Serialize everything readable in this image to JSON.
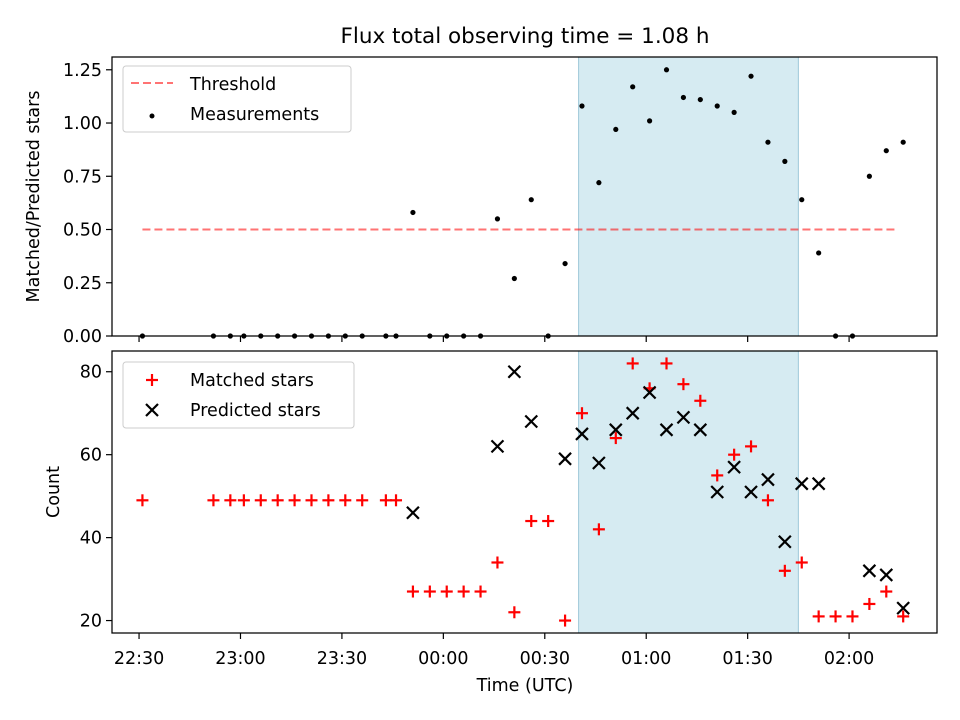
{
  "title": "Flux total observing time = 1.08 h",
  "xlabel": "Time (UTC)",
  "x_tick_labels": [
    "22:30",
    "23:00",
    "23:30",
    "00:00",
    "00:30",
    "01:00",
    "01:30",
    "02:00"
  ],
  "colors": {
    "threshold": "#ff0000",
    "measurements": "#000000",
    "matched": "#ff0000",
    "predicted": "#000000",
    "shade": "#add8e6"
  },
  "chart_data": [
    {
      "type": "scatter",
      "panel": "top",
      "ylabel": "Matched/Predicted stars",
      "xlim": [
        "22:22",
        "02:26"
      ],
      "ylim": [
        0,
        1.31
      ],
      "y_ticks": [
        "0.00",
        "0.25",
        "0.50",
        "0.75",
        "1.00",
        "1.25"
      ],
      "legend": {
        "location": "upper left",
        "entries": [
          "Threshold",
          "Measurements"
        ]
      },
      "shaded_region": {
        "x_start": "00:40",
        "x_end": "01:45"
      },
      "series": [
        {
          "name": "Threshold",
          "style": "dashed line",
          "points": [
            {
              "x": "22:31",
              "y": 0.5
            },
            {
              "x": "02:14",
              "y": 0.5
            }
          ]
        },
        {
          "name": "Measurements",
          "style": "dots",
          "points": [
            {
              "x": "22:31",
              "y": 0.0
            },
            {
              "x": "22:52",
              "y": 0.0
            },
            {
              "x": "22:57",
              "y": 0.0
            },
            {
              "x": "23:01",
              "y": 0.0
            },
            {
              "x": "23:06",
              "y": 0.0
            },
            {
              "x": "23:11",
              "y": 0.0
            },
            {
              "x": "23:16",
              "y": 0.0
            },
            {
              "x": "23:21",
              "y": 0.0
            },
            {
              "x": "23:26",
              "y": 0.0
            },
            {
              "x": "23:31",
              "y": 0.0
            },
            {
              "x": "23:36",
              "y": 0.0
            },
            {
              "x": "23:43",
              "y": 0.0
            },
            {
              "x": "23:46",
              "y": 0.0
            },
            {
              "x": "23:51",
              "y": 0.58
            },
            {
              "x": "23:56",
              "y": 0.0
            },
            {
              "x": "00:01",
              "y": 0.0
            },
            {
              "x": "00:06",
              "y": 0.0
            },
            {
              "x": "00:11",
              "y": 0.0
            },
            {
              "x": "00:16",
              "y": 0.55
            },
            {
              "x": "00:21",
              "y": 0.27
            },
            {
              "x": "00:26",
              "y": 0.64
            },
            {
              "x": "00:31",
              "y": 0.0
            },
            {
              "x": "00:36",
              "y": 0.34
            },
            {
              "x": "00:41",
              "y": 1.08
            },
            {
              "x": "00:46",
              "y": 0.72
            },
            {
              "x": "00:51",
              "y": 0.97
            },
            {
              "x": "00:56",
              "y": 1.17
            },
            {
              "x": "01:01",
              "y": 1.01
            },
            {
              "x": "01:06",
              "y": 1.25
            },
            {
              "x": "01:11",
              "y": 1.12
            },
            {
              "x": "01:16",
              "y": 1.11
            },
            {
              "x": "01:21",
              "y": 1.08
            },
            {
              "x": "01:26",
              "y": 1.05
            },
            {
              "x": "01:31",
              "y": 1.22
            },
            {
              "x": "01:36",
              "y": 0.91
            },
            {
              "x": "01:41",
              "y": 0.82
            },
            {
              "x": "01:46",
              "y": 0.64
            },
            {
              "x": "01:51",
              "y": 0.39
            },
            {
              "x": "01:56",
              "y": 0.0
            },
            {
              "x": "02:01",
              "y": 0.0
            },
            {
              "x": "02:06",
              "y": 0.75
            },
            {
              "x": "02:11",
              "y": 0.87
            },
            {
              "x": "02:16",
              "y": 0.91
            }
          ]
        }
      ]
    },
    {
      "type": "scatter",
      "panel": "bottom",
      "ylabel": "Count",
      "xlim": [
        "22:22",
        "02:26"
      ],
      "ylim": [
        17,
        85
      ],
      "y_ticks": [
        "20",
        "40",
        "60",
        "80"
      ],
      "legend": {
        "location": "upper left",
        "entries": [
          "Matched stars",
          "Predicted stars"
        ]
      },
      "shaded_region": {
        "x_start": "00:40",
        "x_end": "01:45"
      },
      "series": [
        {
          "name": "Matched stars",
          "marker": "+",
          "points": [
            {
              "x": "22:31",
              "y": 49
            },
            {
              "x": "22:52",
              "y": 49
            },
            {
              "x": "22:57",
              "y": 49
            },
            {
              "x": "23:01",
              "y": 49
            },
            {
              "x": "23:06",
              "y": 49
            },
            {
              "x": "23:11",
              "y": 49
            },
            {
              "x": "23:16",
              "y": 49
            },
            {
              "x": "23:21",
              "y": 49
            },
            {
              "x": "23:26",
              "y": 49
            },
            {
              "x": "23:31",
              "y": 49
            },
            {
              "x": "23:36",
              "y": 49
            },
            {
              "x": "23:43",
              "y": 49
            },
            {
              "x": "23:46",
              "y": 49
            },
            {
              "x": "23:51",
              "y": 27
            },
            {
              "x": "23:56",
              "y": 27
            },
            {
              "x": "00:01",
              "y": 27
            },
            {
              "x": "00:06",
              "y": 27
            },
            {
              "x": "00:11",
              "y": 27
            },
            {
              "x": "00:16",
              "y": 34
            },
            {
              "x": "00:21",
              "y": 22
            },
            {
              "x": "00:26",
              "y": 44
            },
            {
              "x": "00:31",
              "y": 44
            },
            {
              "x": "00:36",
              "y": 20
            },
            {
              "x": "00:41",
              "y": 70
            },
            {
              "x": "00:46",
              "y": 42
            },
            {
              "x": "00:51",
              "y": 64
            },
            {
              "x": "00:56",
              "y": 82
            },
            {
              "x": "01:01",
              "y": 76
            },
            {
              "x": "01:06",
              "y": 82
            },
            {
              "x": "01:11",
              "y": 77
            },
            {
              "x": "01:16",
              "y": 73
            },
            {
              "x": "01:21",
              "y": 55
            },
            {
              "x": "01:26",
              "y": 60
            },
            {
              "x": "01:31",
              "y": 62
            },
            {
              "x": "01:36",
              "y": 49
            },
            {
              "x": "01:41",
              "y": 32
            },
            {
              "x": "01:46",
              "y": 34
            },
            {
              "x": "01:51",
              "y": 21
            },
            {
              "x": "01:56",
              "y": 21
            },
            {
              "x": "02:01",
              "y": 21
            },
            {
              "x": "02:06",
              "y": 24
            },
            {
              "x": "02:11",
              "y": 27
            },
            {
              "x": "02:16",
              "y": 21
            }
          ]
        },
        {
          "name": "Predicted stars",
          "marker": "x",
          "points": [
            {
              "x": "23:51",
              "y": 46
            },
            {
              "x": "00:16",
              "y": 62
            },
            {
              "x": "00:21",
              "y": 80
            },
            {
              "x": "00:26",
              "y": 68
            },
            {
              "x": "00:36",
              "y": 59
            },
            {
              "x": "00:41",
              "y": 65
            },
            {
              "x": "00:46",
              "y": 58
            },
            {
              "x": "00:51",
              "y": 66
            },
            {
              "x": "00:56",
              "y": 70
            },
            {
              "x": "01:01",
              "y": 75
            },
            {
              "x": "01:06",
              "y": 66
            },
            {
              "x": "01:11",
              "y": 69
            },
            {
              "x": "01:16",
              "y": 66
            },
            {
              "x": "01:21",
              "y": 51
            },
            {
              "x": "01:26",
              "y": 57
            },
            {
              "x": "01:31",
              "y": 51
            },
            {
              "x": "01:36",
              "y": 54
            },
            {
              "x": "01:41",
              "y": 39
            },
            {
              "x": "01:46",
              "y": 53
            },
            {
              "x": "01:51",
              "y": 53
            },
            {
              "x": "02:06",
              "y": 32
            },
            {
              "x": "02:11",
              "y": 31
            },
            {
              "x": "02:16",
              "y": 23
            }
          ]
        }
      ]
    }
  ]
}
